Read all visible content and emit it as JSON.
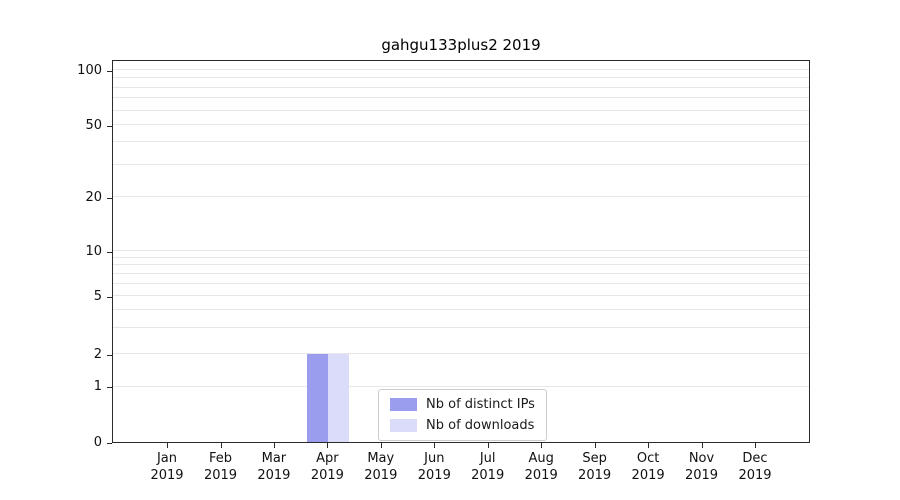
{
  "chart_data": {
    "type": "bar",
    "title": "gahgu133plus2 2019",
    "categories": [
      "Jan",
      "Feb",
      "Mar",
      "Apr",
      "May",
      "Jun",
      "Jul",
      "Aug",
      "Sep",
      "Oct",
      "Nov",
      "Dec"
    ],
    "x_year": "2019",
    "series": [
      {
        "name": "Nb of distinct IPs",
        "color": "#9a9cee",
        "values": [
          0,
          0,
          0,
          2,
          0,
          0,
          0,
          0,
          0,
          0,
          0,
          0
        ]
      },
      {
        "name": "Nb of downloads",
        "color": "#dbdcf9",
        "values": [
          0,
          0,
          0,
          2,
          0,
          0,
          0,
          0,
          0,
          0,
          0,
          0
        ]
      }
    ],
    "y_ticks": [
      0,
      1,
      2,
      5,
      10,
      20,
      50,
      100
    ],
    "y_minor_gridlines": [
      1,
      2,
      3,
      4,
      5,
      6,
      7,
      8,
      9,
      10,
      20,
      30,
      40,
      50,
      60,
      70,
      80,
      90,
      100
    ],
    "y_scale": "symlog",
    "ylim": [
      0,
      110
    ],
    "xlabel": "",
    "ylabel": "",
    "grid": "horizontal-minor",
    "legend_position": "bottom-center-inside"
  }
}
